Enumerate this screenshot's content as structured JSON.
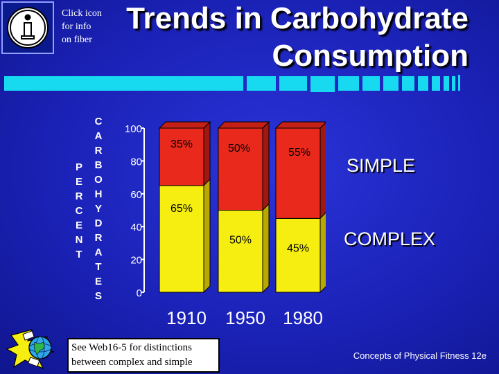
{
  "info": {
    "line1": "Click icon",
    "line2": "for info",
    "line3": "on fiber"
  },
  "title": {
    "line1": "Trends in Carbohydrate",
    "line2": "Consumption"
  },
  "axis_word_percent": [
    "P",
    "E",
    "R",
    "C",
    "E",
    "N",
    "T"
  ],
  "axis_word_carbohydrates": [
    "C",
    "A",
    "R",
    "B",
    "O",
    "H",
    "Y",
    "D",
    "R",
    "A",
    "T",
    "E",
    "S"
  ],
  "legend": {
    "simple": "SIMPLE",
    "complex": "COMPLEX"
  },
  "note": {
    "line1": "See Web16-5 for distinctions",
    "line2": "between complex and simple"
  },
  "credit": "Concepts of Physical Fitness 12e",
  "colors": {
    "background": "#1b22b8",
    "simple": "#e8291c",
    "complex": "#f5ee10",
    "text": "#ffffff"
  },
  "chart_data": {
    "type": "bar",
    "stacked": true,
    "categories": [
      "1910",
      "1950",
      "1980"
    ],
    "series": [
      {
        "name": "COMPLEX",
        "values": [
          65,
          50,
          45
        ],
        "labels": [
          "65%",
          "50%",
          "45%"
        ]
      },
      {
        "name": "SIMPLE",
        "values": [
          35,
          50,
          55
        ],
        "labels": [
          "35%",
          "50%",
          "55%"
        ]
      }
    ],
    "y_ticks": [
      "0",
      "20",
      "40",
      "60",
      "80",
      "100"
    ],
    "ylim": [
      0,
      100
    ],
    "ylabel": "PERCENT CARBOHYDRATES"
  }
}
